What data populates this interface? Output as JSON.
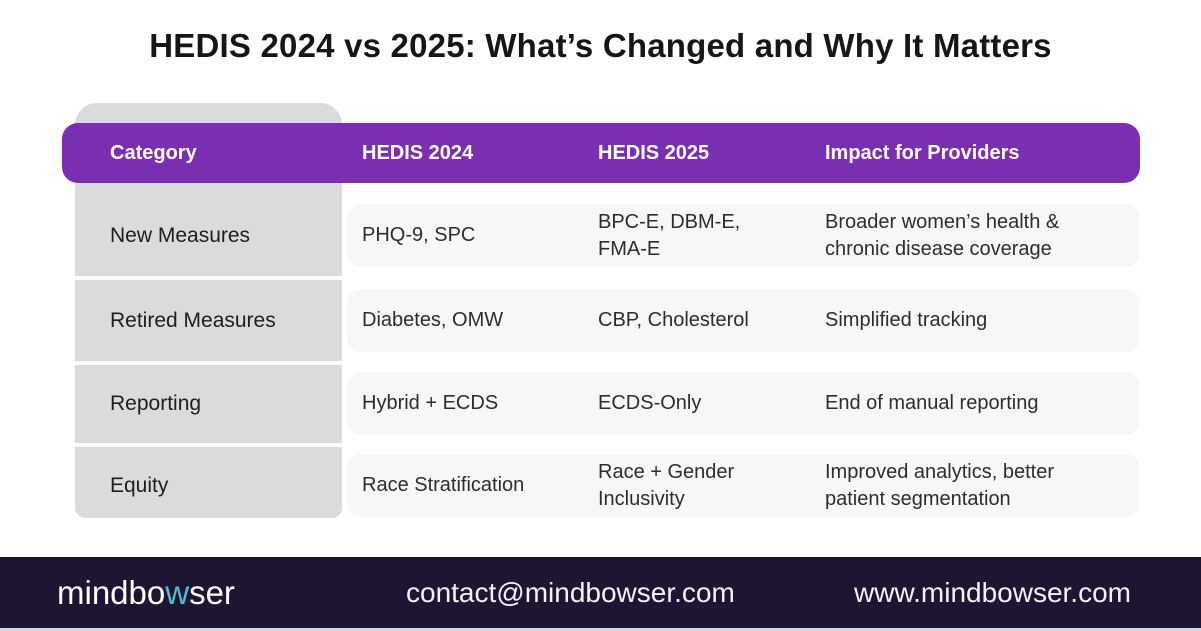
{
  "title": "HEDIS 2024 vs 2025: What’s Changed and Why It Matters",
  "chart_data": {
    "type": "table",
    "title": "HEDIS 2024 vs 2025: What’s Changed and Why It Matters",
    "columns": [
      "Category",
      "HEDIS 2024",
      "HEDIS 2025",
      "Impact for Providers"
    ],
    "rows": [
      [
        "New Measures",
        "PHQ-9, SPC",
        "BPC-E, DBM-E, FMA-E",
        "Broader women’s health & chronic disease coverage"
      ],
      [
        "Retired Measures",
        "Diabetes, OMW",
        "CBP, Cholesterol",
        "Simplified tracking"
      ],
      [
        "Reporting",
        "Hybrid + ECDS",
        "ECDS-Only",
        "End of manual reporting"
      ],
      [
        "Equity",
        "Race Stratification",
        "Race + Gender Inclusivity",
        "Improved analytics, better patient segmentation"
      ]
    ]
  },
  "footer": {
    "logo_prefix": "mindbo",
    "logo_highlight": "w",
    "logo_suffix": "ser",
    "email": "contact@mindbowser.com",
    "website": "www.mindbowser.com"
  },
  "colors": {
    "header_purple": "#7A2FB3",
    "category_column_gray": "#DBDBDB",
    "row_background": "#F7F7F7",
    "footer_background": "#1D1532",
    "logo_teal": "#49C3D1",
    "title_text": "#161616",
    "body_text": "#2D2D2D"
  }
}
